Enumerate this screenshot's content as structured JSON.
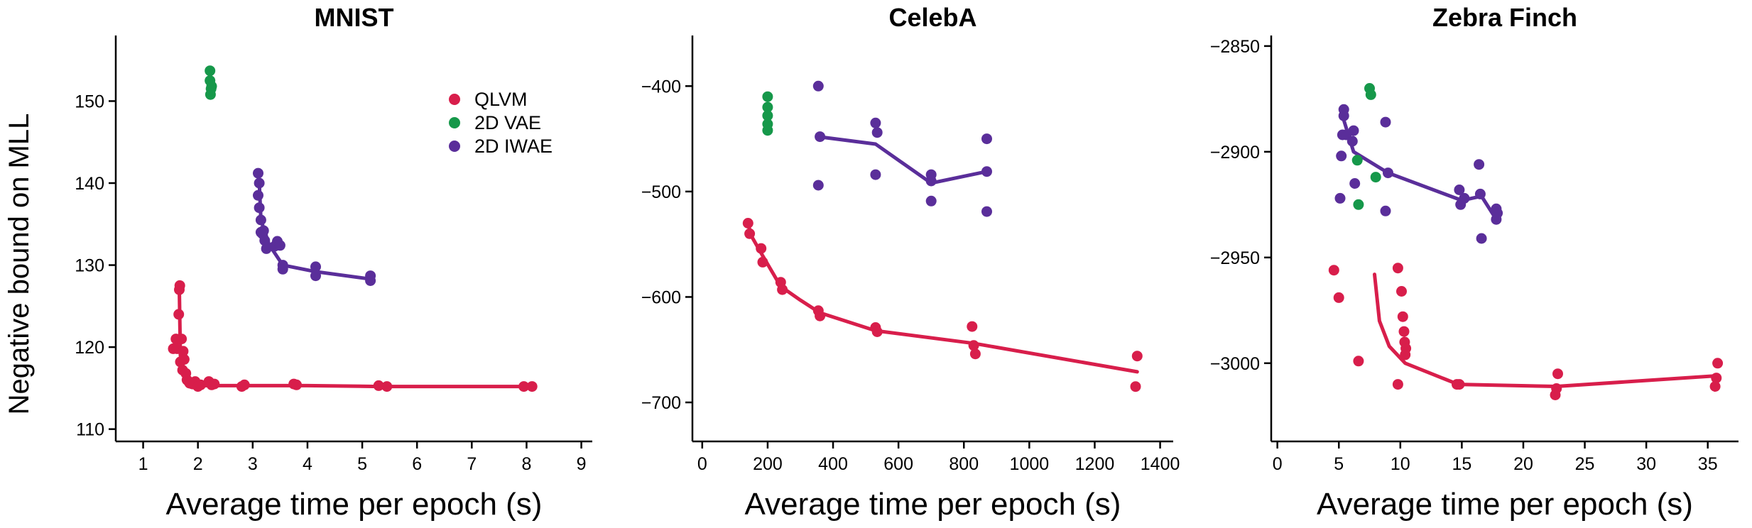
{
  "colors": {
    "QLVM": "#d81e4b",
    "2D VAE": "#16984a",
    "2D IWAE": "#5a2e9a"
  },
  "ylabel": "Negative bound on MLL",
  "legend": {
    "placement": "top-right of first panel",
    "entries": [
      "QLVM",
      "2D VAE",
      "2D IWAE"
    ]
  },
  "chart_data": [
    {
      "type": "scatter",
      "title": "MNIST",
      "xlabel": "Average time per epoch (s)",
      "ylabel": "Negative bound on MLL",
      "xlim": [
        0.5,
        9.2
      ],
      "ylim": [
        108.5,
        158
      ],
      "xticks": [
        1,
        2,
        3,
        4,
        5,
        6,
        7,
        8,
        9
      ],
      "yticks": [
        110,
        120,
        130,
        140,
        150
      ],
      "series": [
        {
          "name": "QLVM",
          "points": [
            [
              1.55,
              119.8
            ],
            [
              1.6,
              121
            ],
            [
              1.62,
              119.8
            ],
            [
              1.65,
              124
            ],
            [
              1.66,
              127
            ],
            [
              1.67,
              127.5
            ],
            [
              1.7,
              121
            ],
            [
              1.68,
              118.2
            ],
            [
              1.72,
              117.2
            ],
            [
              1.73,
              119.5
            ],
            [
              1.75,
              118.5
            ],
            [
              1.78,
              116.8
            ],
            [
              1.8,
              116
            ],
            [
              1.83,
              115.8
            ],
            [
              1.85,
              115.6
            ],
            [
              1.9,
              115.5
            ],
            [
              1.95,
              115.8
            ],
            [
              2.0,
              115.2
            ],
            [
              2.05,
              115.4
            ],
            [
              2.2,
              115.8
            ],
            [
              2.25,
              115.4
            ],
            [
              2.3,
              115.5
            ],
            [
              2.8,
              115.2
            ],
            [
              2.85,
              115.4
            ],
            [
              3.75,
              115.5
            ],
            [
              3.8,
              115.4
            ],
            [
              5.3,
              115.3
            ],
            [
              5.45,
              115.2
            ],
            [
              7.95,
              115.2
            ],
            [
              8.1,
              115.2
            ]
          ],
          "line": [
            [
              1.66,
              127
            ],
            [
              1.68,
              119
            ],
            [
              1.75,
              116.5
            ],
            [
              1.85,
              115.6
            ],
            [
              2.0,
              115.3
            ],
            [
              2.3,
              115.3
            ],
            [
              3.0,
              115.3
            ],
            [
              4.0,
              115.3
            ],
            [
              5.3,
              115.2
            ],
            [
              6.5,
              115.2
            ],
            [
              8.1,
              115.2
            ]
          ]
        },
        {
          "name": "2D VAE",
          "points": [
            [
              2.22,
              153.7
            ],
            [
              2.22,
              152.5
            ],
            [
              2.24,
              151.5
            ],
            [
              2.23,
              150.8
            ],
            [
              2.25,
              151.8
            ]
          ],
          "line": []
        },
        {
          "name": "2D IWAE",
          "points": [
            [
              3.1,
              141.2
            ],
            [
              3.12,
              140
            ],
            [
              3.1,
              138.5
            ],
            [
              3.12,
              137
            ],
            [
              3.15,
              135.5
            ],
            [
              3.15,
              134
            ],
            [
              3.18,
              133.8
            ],
            [
              3.2,
              134.2
            ],
            [
              3.22,
              133
            ],
            [
              3.25,
              132
            ],
            [
              3.4,
              132.3
            ],
            [
              3.45,
              132.9
            ],
            [
              3.5,
              132.4
            ],
            [
              3.55,
              130
            ],
            [
              3.55,
              129.5
            ],
            [
              4.15,
              129.8
            ],
            [
              4.15,
              128.7
            ],
            [
              5.15,
              128.7
            ],
            [
              5.15,
              128.1
            ]
          ],
          "line": [
            [
              3.12,
              140
            ],
            [
              3.15,
              135.5
            ],
            [
              3.3,
              132.5
            ],
            [
              3.55,
              130
            ],
            [
              4.15,
              129.2
            ],
            [
              5.15,
              128.3
            ]
          ]
        }
      ]
    },
    {
      "type": "scatter",
      "title": "CelebA",
      "xlabel": "Average time per epoch (s)",
      "xlim": [
        -30,
        1440
      ],
      "ylim": [
        -737,
        -352
      ],
      "xticks": [
        0,
        200,
        400,
        600,
        800,
        1000,
        1200,
        1400
      ],
      "yticks": [
        -400,
        -500,
        -600,
        -700
      ],
      "series": [
        {
          "name": "QLVM",
          "points": [
            [
              140,
              -530
            ],
            [
              145,
              -540
            ],
            [
              180,
              -554
            ],
            [
              185,
              -567
            ],
            [
              240,
              -586
            ],
            [
              245,
              -593
            ],
            [
              355,
              -613
            ],
            [
              360,
              -618
            ],
            [
              530,
              -629
            ],
            [
              535,
              -633
            ],
            [
              825,
              -628
            ],
            [
              830,
              -646
            ],
            [
              835,
              -654
            ],
            [
              1330,
              -656
            ],
            [
              1325,
              -685
            ]
          ],
          "line": [
            [
              140,
              -530
            ],
            [
              150,
              -542
            ],
            [
              185,
              -561
            ],
            [
              240,
              -590
            ],
            [
              300,
              -603
            ],
            [
              360,
              -615
            ],
            [
              530,
              -632
            ],
            [
              830,
              -644
            ],
            [
              1330,
              -671
            ]
          ]
        },
        {
          "name": "2D VAE",
          "points": [
            [
              200,
              -410
            ],
            [
              200,
              -420
            ],
            [
              200,
              -428
            ],
            [
              200,
              -436
            ],
            [
              200,
              -442
            ]
          ],
          "line": []
        },
        {
          "name": "2D IWAE",
          "points": [
            [
              355,
              -400
            ],
            [
              360,
              -448
            ],
            [
              355,
              -494
            ],
            [
              530,
              -435
            ],
            [
              535,
              -444
            ],
            [
              530,
              -484
            ],
            [
              700,
              -484
            ],
            [
              700,
              -490
            ],
            [
              700,
              -509
            ],
            [
              870,
              -450
            ],
            [
              870,
              -481
            ],
            [
              870,
              -519
            ]
          ],
          "line": [
            [
              355,
              -448
            ],
            [
              530,
              -455
            ],
            [
              700,
              -492
            ],
            [
              870,
              -481
            ]
          ]
        }
      ]
    },
    {
      "type": "scatter",
      "title": "Zebra Finch",
      "xlabel": "Average time per epoch (s)",
      "xlim": [
        -0.5,
        37.5
      ],
      "ylim": [
        -3037,
        -2845
      ],
      "xticks": [
        0,
        5,
        10,
        15,
        20,
        25,
        30,
        35
      ],
      "yticks": [
        -2850,
        -2900,
        -2950,
        -3000
      ],
      "series": [
        {
          "name": "QLVM",
          "points": [
            [
              4.6,
              -2956
            ],
            [
              5.0,
              -2969
            ],
            [
              6.6,
              -2999
            ],
            [
              9.8,
              -2955
            ],
            [
              10.1,
              -2966
            ],
            [
              10.2,
              -2978
            ],
            [
              10.3,
              -2985
            ],
            [
              10.35,
              -2990
            ],
            [
              10.4,
              -2996
            ],
            [
              10.45,
              -2993
            ],
            [
              9.8,
              -3010
            ],
            [
              14.8,
              -3010
            ],
            [
              14.6,
              -3010
            ],
            [
              22.8,
              -3005
            ],
            [
              22.7,
              -3012
            ],
            [
              22.6,
              -3015
            ],
            [
              35.8,
              -3000
            ],
            [
              35.7,
              -3007
            ],
            [
              35.6,
              -3011
            ]
          ],
          "line": [
            [
              7.9,
              -2958
            ],
            [
              8.3,
              -2980
            ],
            [
              9.1,
              -2992
            ],
            [
              10.4,
              -3000
            ],
            [
              14.7,
              -3010
            ],
            [
              22.7,
              -3011
            ],
            [
              35.7,
              -3006
            ]
          ]
        },
        {
          "name": "2D VAE",
          "points": [
            [
              7.5,
              -2870
            ],
            [
              7.6,
              -2873
            ],
            [
              6.5,
              -2904
            ],
            [
              8.0,
              -2912
            ],
            [
              6.6,
              -2925
            ]
          ],
          "line": []
        },
        {
          "name": "2D IWAE",
          "points": [
            [
              5.4,
              -2880
            ],
            [
              5.4,
              -2883
            ],
            [
              5.3,
              -2892
            ],
            [
              5.6,
              -2892
            ],
            [
              5.2,
              -2902
            ],
            [
              5.1,
              -2922
            ],
            [
              6.2,
              -2890
            ],
            [
              6.1,
              -2895
            ],
            [
              6.3,
              -2915
            ],
            [
              8.8,
              -2886
            ],
            [
              9.0,
              -2910
            ],
            [
              8.8,
              -2928
            ],
            [
              14.8,
              -2918
            ],
            [
              14.9,
              -2925
            ],
            [
              15.2,
              -2922
            ],
            [
              16.4,
              -2906
            ],
            [
              16.5,
              -2920
            ],
            [
              16.6,
              -2941
            ],
            [
              17.8,
              -2927
            ],
            [
              17.9,
              -2929
            ],
            [
              17.8,
              -2932
            ]
          ],
          "line": [
            [
              5.4,
              -2885
            ],
            [
              6.2,
              -2900
            ],
            [
              9.0,
              -2910
            ],
            [
              15.0,
              -2923
            ],
            [
              16.6,
              -2921
            ],
            [
              17.8,
              -2932
            ]
          ]
        }
      ]
    }
  ]
}
